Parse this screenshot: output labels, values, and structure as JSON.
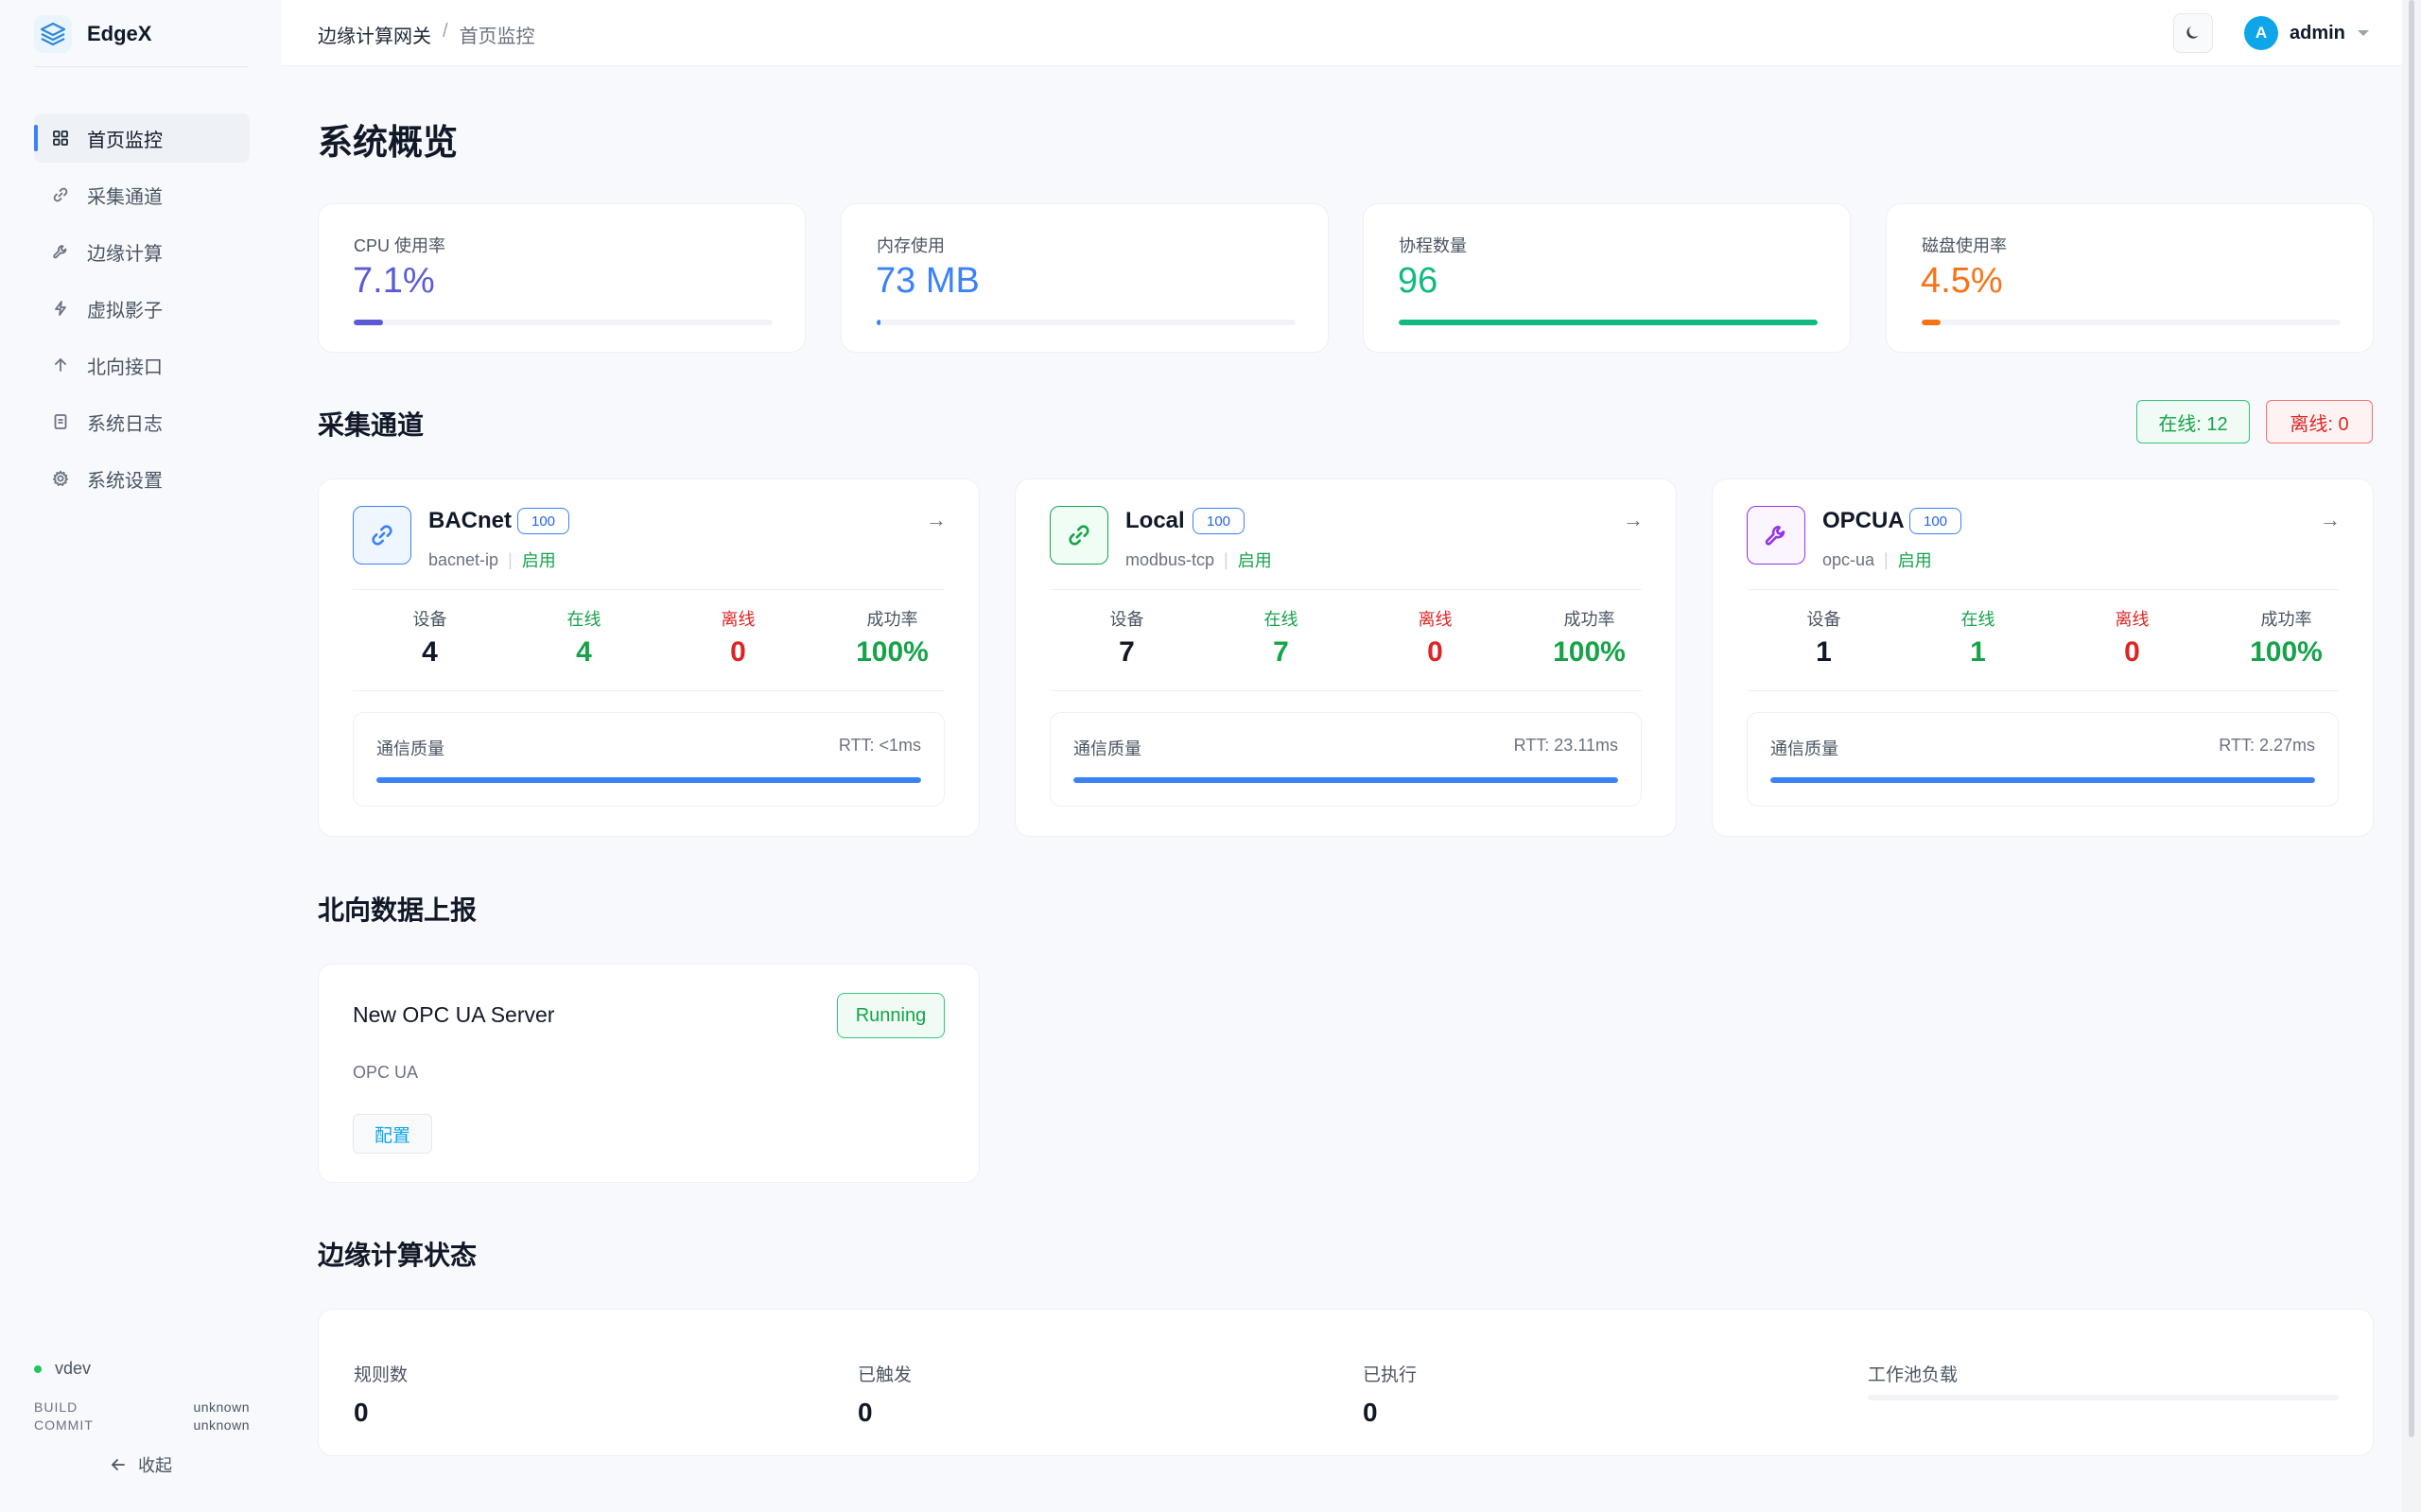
{
  "brand": {
    "name": "EdgeX"
  },
  "sidebar": {
    "items": [
      {
        "label": "首页监控",
        "icon": "grid-icon",
        "active": true
      },
      {
        "label": "采集通道",
        "icon": "link-icon"
      },
      {
        "label": "边缘计算",
        "icon": "wrench-icon"
      },
      {
        "label": "虚拟影子",
        "icon": "bolt-icon"
      },
      {
        "label": "北向接口",
        "icon": "arrow-up-icon"
      },
      {
        "label": "系统日志",
        "icon": "document-icon"
      },
      {
        "label": "系统设置",
        "icon": "gear-icon"
      }
    ],
    "version": "vdev",
    "build_label": "BUILD",
    "build_value": "unknown",
    "commit_label": "COMMIT",
    "commit_value": "unknown",
    "collapse_label": "收起"
  },
  "header": {
    "breadcrumb_root": "边缘计算网关",
    "breadcrumb_sep": "/",
    "breadcrumb_current": "首页监控",
    "user_initial": "A",
    "user_name": "admin"
  },
  "overview": {
    "title": "系统概览",
    "stats": [
      {
        "label": "CPU 使用率",
        "value": "7.1%",
        "percent": 7.1,
        "color": "#5b5bd6"
      },
      {
        "label": "内存使用",
        "value": "73 MB",
        "percent": 1,
        "color": "#3b82f6"
      },
      {
        "label": "协程数量",
        "value": "96",
        "percent": 100,
        "color": "#10b981"
      },
      {
        "label": "磁盘使用率",
        "value": "4.5%",
        "percent": 4.5,
        "color": "#f97316"
      }
    ]
  },
  "channels": {
    "title": "采集通道",
    "online_badge": "在线: 12",
    "offline_badge": "离线: 0",
    "stat_labels": {
      "devices": "设备",
      "online": "在线",
      "offline": "离线",
      "success": "成功率"
    },
    "quality_label": "通信质量",
    "items": [
      {
        "name": "BACnet",
        "tag": "100",
        "protocol": "bacnet-ip",
        "status": "启用",
        "icon": "link-icon",
        "icon_color": "#3b82f6",
        "devices": "4",
        "online": "4",
        "offline": "0",
        "success": "100%",
        "rtt": "RTT: <1ms",
        "quality": 100
      },
      {
        "name": "Local",
        "tag": "100",
        "protocol": "modbus-tcp",
        "status": "启用",
        "icon": "link-icon",
        "icon_color": "#16a34a",
        "devices": "7",
        "online": "7",
        "offline": "0",
        "success": "100%",
        "rtt": "RTT: 23.11ms",
        "quality": 100
      },
      {
        "name": "OPCUA",
        "tag": "100",
        "protocol": "opc-ua",
        "status": "启用",
        "icon": "wrench-icon",
        "icon_color": "#9333ea",
        "devices": "1",
        "online": "1",
        "offline": "0",
        "success": "100%",
        "rtt": "RTT: 2.27ms",
        "quality": 100
      }
    ]
  },
  "northbound": {
    "title": "北向数据上报",
    "server_name": "New OPC UA Server",
    "status": "Running",
    "type": "OPC UA",
    "config_label": "配置"
  },
  "edge": {
    "title": "边缘计算状态",
    "rules_label": "规则数",
    "rules_value": "0",
    "triggered_label": "已触发",
    "triggered_value": "0",
    "executed_label": "已执行",
    "executed_value": "0",
    "pool_label": "工作池负载",
    "pool_load": 0
  },
  "colors": {
    "accent": "#3b82f6",
    "success": "#16a34a",
    "danger": "#dc2626",
    "background": "#f7f9fc"
  }
}
